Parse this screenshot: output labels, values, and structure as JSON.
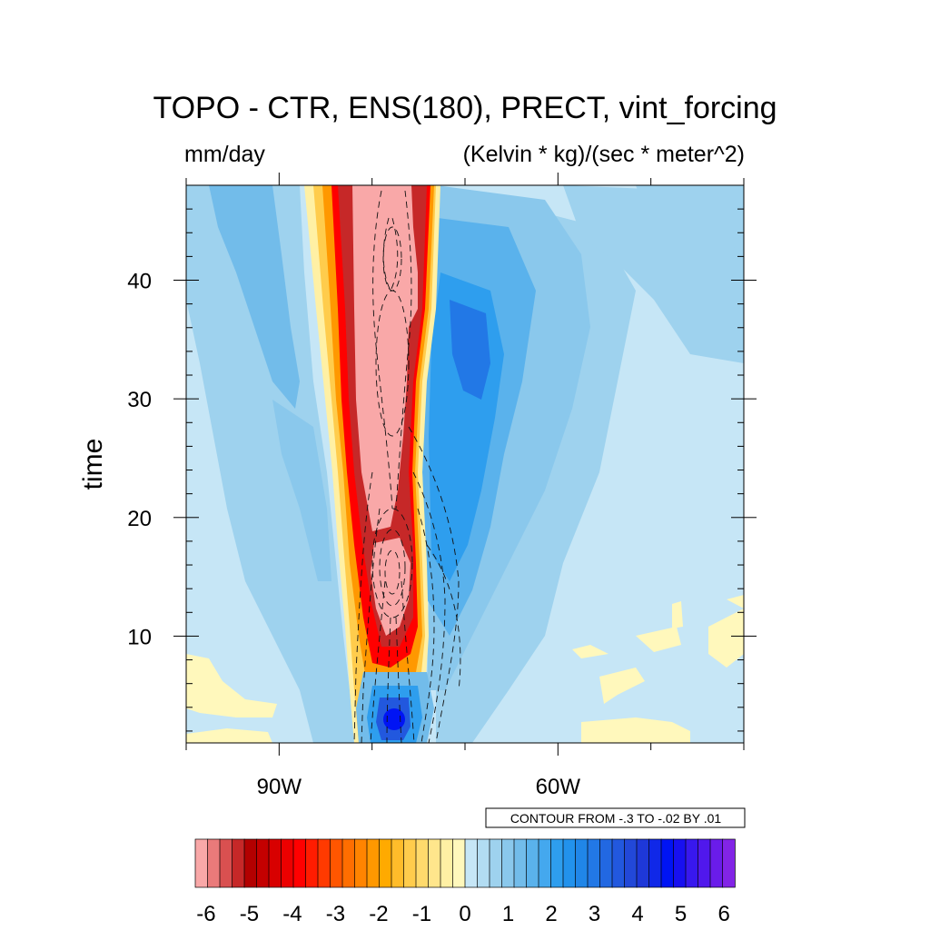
{
  "chart_data": {
    "type": "heatmap",
    "title": "TOPO - CTR, ENS(180), PRECT, vint_forcing",
    "left_subtitle": "mm/day",
    "right_subtitle": "(Kelvin * kg)/(sec * meter^2)",
    "xlabel": "",
    "ylabel": "time",
    "x_range_deg_lon": [
      -100,
      -40
    ],
    "y_range": [
      1,
      48
    ],
    "x_ticks": [
      {
        "value": -90,
        "label": "90W"
      },
      {
        "value": -60,
        "label": "60W"
      }
    ],
    "y_ticks": [
      {
        "value": 10,
        "label": "10"
      },
      {
        "value": 20,
        "label": "20"
      },
      {
        "value": 30,
        "label": "30"
      },
      {
        "value": 40,
        "label": "40"
      }
    ],
    "contour_info": "CONTOUR FROM -.3 TO -.02 BY .01",
    "colorbar": {
      "min": -6.25,
      "max": 6.25,
      "step": 0.25,
      "labels": [
        "-6",
        "-5",
        "-4",
        "-3",
        "-2",
        "-1",
        "0",
        "1",
        "2",
        "3",
        "4",
        "5",
        "6"
      ],
      "colors": [
        "#f9a8a8",
        "#ea7a7a",
        "#d95050",
        "#c62828",
        "#b30000",
        "#c40000",
        "#d80000",
        "#ec0000",
        "#ff0000",
        "#ff1c00",
        "#ff3a00",
        "#ff5600",
        "#ff6e00",
        "#ff8400",
        "#ff9800",
        "#ffaa00",
        "#ffbc2a",
        "#ffcc4c",
        "#ffda6c",
        "#ffe68c",
        "#fff0a4",
        "#fff8bc",
        "#c6e6f6",
        "#b2dcf2",
        "#9ed2ee",
        "#8ac8ec",
        "#72bcea",
        "#5ab2ec",
        "#44a8ee",
        "#2e9eee",
        "#2292ec",
        "#2086e8",
        "#2278e6",
        "#2268e2",
        "#2258de",
        "#2248d8",
        "#1e38d8",
        "#1028e8",
        "#0014f4",
        "#1810f0",
        "#3818ee",
        "#5018ec",
        "#6a1cea",
        "#8224e6"
      ]
    },
    "description_fields": {
      "shaded_field": "PRECT difference (mm/day)",
      "contour_field": "vint_forcing difference, dashed negative contours"
    }
  }
}
